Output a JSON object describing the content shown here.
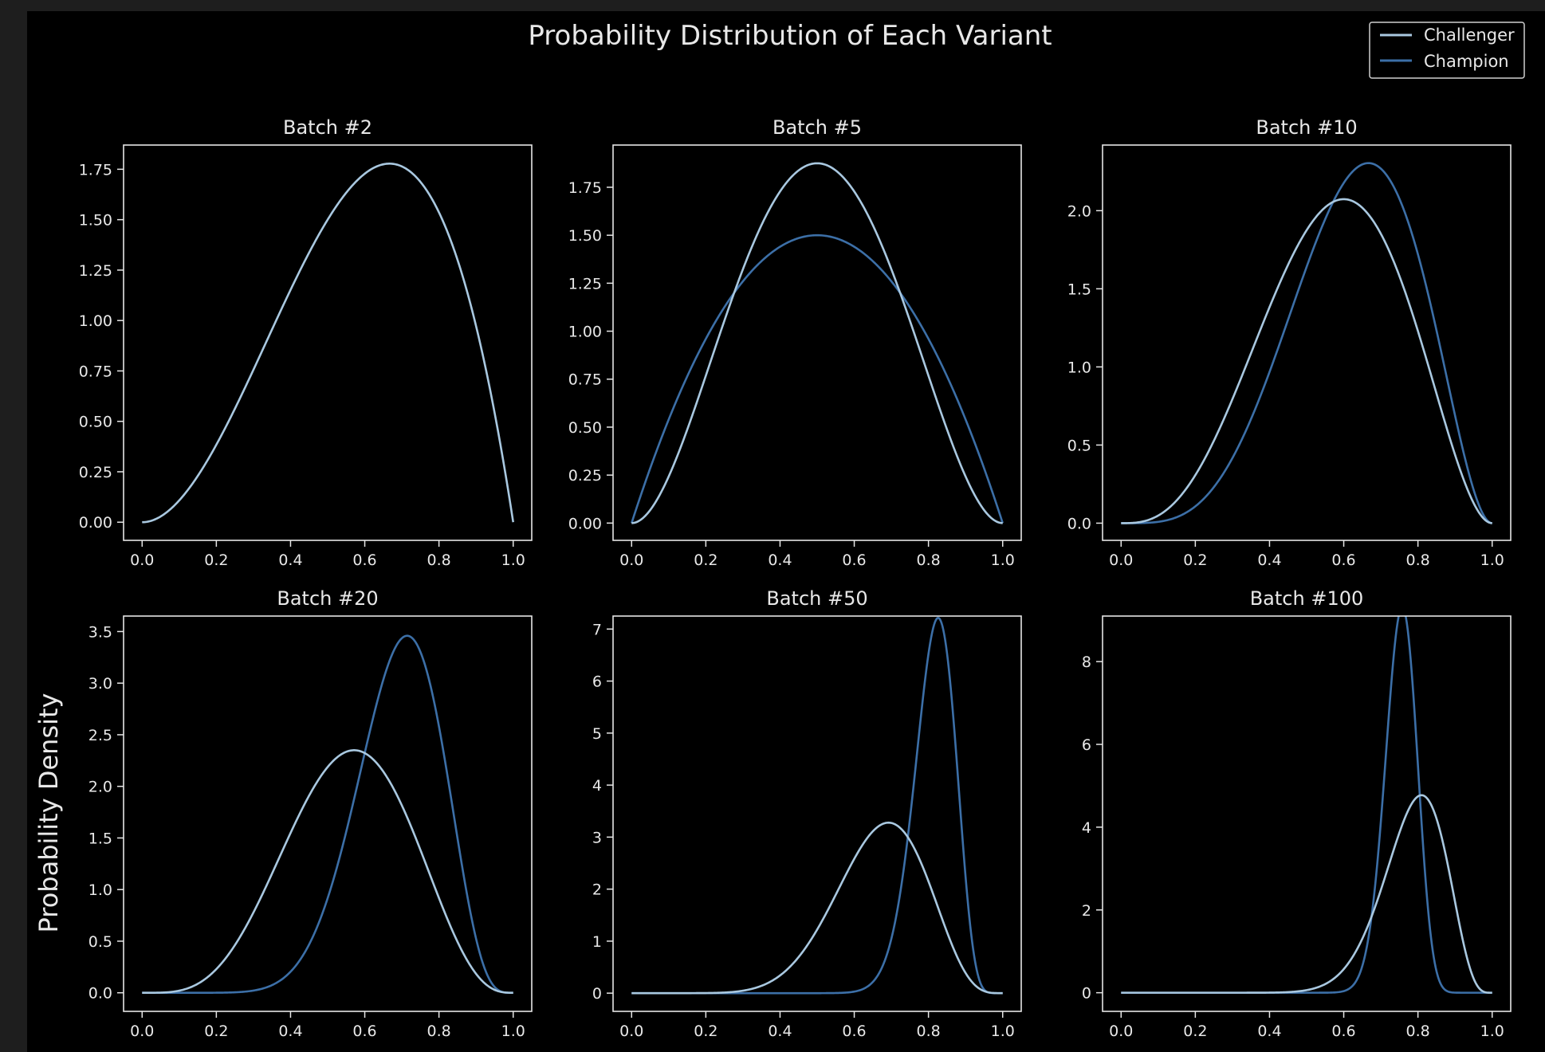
{
  "figure": {
    "title": "Probability Distribution of Each Variant",
    "ylabel": "Probability Density",
    "background": "#000000",
    "outer_background": "#1e1e1e",
    "text_color": "#e8e8e8",
    "legend": {
      "placement": "top-right",
      "items": [
        {
          "label": "Challenger",
          "color": "#a9c8e0"
        },
        {
          "label": "Champion",
          "color": "#3c6fa7"
        }
      ]
    }
  },
  "chart_data": [
    {
      "type": "line",
      "title": "Batch #2",
      "xlim": [
        -0.05,
        1.05
      ],
      "ylim": [
        -0.09,
        1.87
      ],
      "xticks": [
        0.0,
        0.2,
        0.4,
        0.6,
        0.8,
        1.0
      ],
      "xtick_labels": [
        "0.0",
        "0.2",
        "0.4",
        "0.6",
        "0.8",
        "1.0"
      ],
      "yticks": [
        0.0,
        0.25,
        0.5,
        0.75,
        1.0,
        1.25,
        1.5,
        1.75
      ],
      "ytick_labels": [
        "0.00",
        "0.25",
        "0.50",
        "0.75",
        "1.00",
        "1.25",
        "1.50",
        "1.75"
      ],
      "series": [
        {
          "name": "Challenger",
          "color": "#a9c8e0",
          "distribution": "beta",
          "a": 3,
          "b": 2
        }
      ]
    },
    {
      "type": "line",
      "title": "Batch #5",
      "xlim": [
        -0.05,
        1.05
      ],
      "ylim": [
        -0.09,
        1.97
      ],
      "xticks": [
        0.0,
        0.2,
        0.4,
        0.6,
        0.8,
        1.0
      ],
      "xtick_labels": [
        "0.0",
        "0.2",
        "0.4",
        "0.6",
        "0.8",
        "1.0"
      ],
      "yticks": [
        0.0,
        0.25,
        0.5,
        0.75,
        1.0,
        1.25,
        1.5,
        1.75
      ],
      "ytick_labels": [
        "0.00",
        "0.25",
        "0.50",
        "0.75",
        "1.00",
        "1.25",
        "1.50",
        "1.75"
      ],
      "series": [
        {
          "name": "Challenger",
          "color": "#a9c8e0",
          "distribution": "beta",
          "a": 3,
          "b": 3
        },
        {
          "name": "Champion",
          "color": "#3c6fa7",
          "distribution": "beta",
          "a": 2,
          "b": 2
        }
      ]
    },
    {
      "type": "line",
      "title": "Batch #10",
      "xlim": [
        -0.05,
        1.05
      ],
      "ylim": [
        -0.11,
        2.42
      ],
      "xticks": [
        0.0,
        0.2,
        0.4,
        0.6,
        0.8,
        1.0
      ],
      "xtick_labels": [
        "0.0",
        "0.2",
        "0.4",
        "0.6",
        "0.8",
        "1.0"
      ],
      "yticks": [
        0.0,
        0.5,
        1.0,
        1.5,
        2.0
      ],
      "ytick_labels": [
        "0.0",
        "0.5",
        "1.0",
        "1.5",
        "2.0"
      ],
      "series": [
        {
          "name": "Challenger",
          "color": "#a9c8e0",
          "distribution": "beta",
          "a": 4,
          "b": 3
        },
        {
          "name": "Champion",
          "color": "#3c6fa7",
          "distribution": "beta",
          "a": 5,
          "b": 3
        }
      ]
    },
    {
      "type": "line",
      "title": "Batch #20",
      "xlim": [
        -0.05,
        1.05
      ],
      "ylim": [
        -0.18,
        3.65
      ],
      "xticks": [
        0.0,
        0.2,
        0.4,
        0.6,
        0.8,
        1.0
      ],
      "xtick_labels": [
        "0.0",
        "0.2",
        "0.4",
        "0.6",
        "0.8",
        "1.0"
      ],
      "yticks": [
        0.0,
        0.5,
        1.0,
        1.5,
        2.0,
        2.5,
        3.0,
        3.5
      ],
      "ytick_labels": [
        "0.0",
        "0.5",
        "1.0",
        "1.5",
        "2.0",
        "2.5",
        "3.0",
        "3.5"
      ],
      "series": [
        {
          "name": "Challenger",
          "color": "#a9c8e0",
          "distribution": "beta",
          "a": 5,
          "b": 4
        },
        {
          "name": "Champion",
          "color": "#3c6fa7",
          "distribution": "beta",
          "a": 11,
          "b": 5
        }
      ]
    },
    {
      "type": "line",
      "title": "Batch #50",
      "xlim": [
        -0.05,
        1.05
      ],
      "ylim": [
        -0.35,
        7.25
      ],
      "xticks": [
        0.0,
        0.2,
        0.4,
        0.6,
        0.8,
        1.0
      ],
      "xtick_labels": [
        "0.0",
        "0.2",
        "0.4",
        "0.6",
        "0.8",
        "1.0"
      ],
      "yticks": [
        0,
        1,
        2,
        3,
        4,
        5,
        6,
        7
      ],
      "ytick_labels": [
        "0",
        "1",
        "2",
        "3",
        "4",
        "5",
        "6",
        "7"
      ],
      "series": [
        {
          "name": "Challenger",
          "color": "#a9c8e0",
          "distribution": "beta",
          "a": 10,
          "b": 5
        },
        {
          "name": "Champion",
          "color": "#3c6fa7",
          "distribution": "beta",
          "a": 39,
          "b": 9
        }
      ]
    },
    {
      "type": "line",
      "title": "Batch #100",
      "xlim": [
        -0.05,
        1.05
      ],
      "ylim": [
        -0.45,
        9.1
      ],
      "xticks": [
        0.0,
        0.2,
        0.4,
        0.6,
        0.8,
        1.0
      ],
      "xtick_labels": [
        "0.0",
        "0.2",
        "0.4",
        "0.6",
        "0.8",
        "1.0"
      ],
      "yticks": [
        0,
        2,
        4,
        6,
        8
      ],
      "ytick_labels": [
        "0",
        "2",
        "4",
        "6",
        "8"
      ],
      "series": [
        {
          "name": "Challenger",
          "color": "#a9c8e0",
          "distribution": "beta",
          "a": 18,
          "b": 5
        },
        {
          "name": "Champion",
          "color": "#3c6fa7",
          "distribution": "beta",
          "a": 76,
          "b": 25
        }
      ]
    }
  ]
}
